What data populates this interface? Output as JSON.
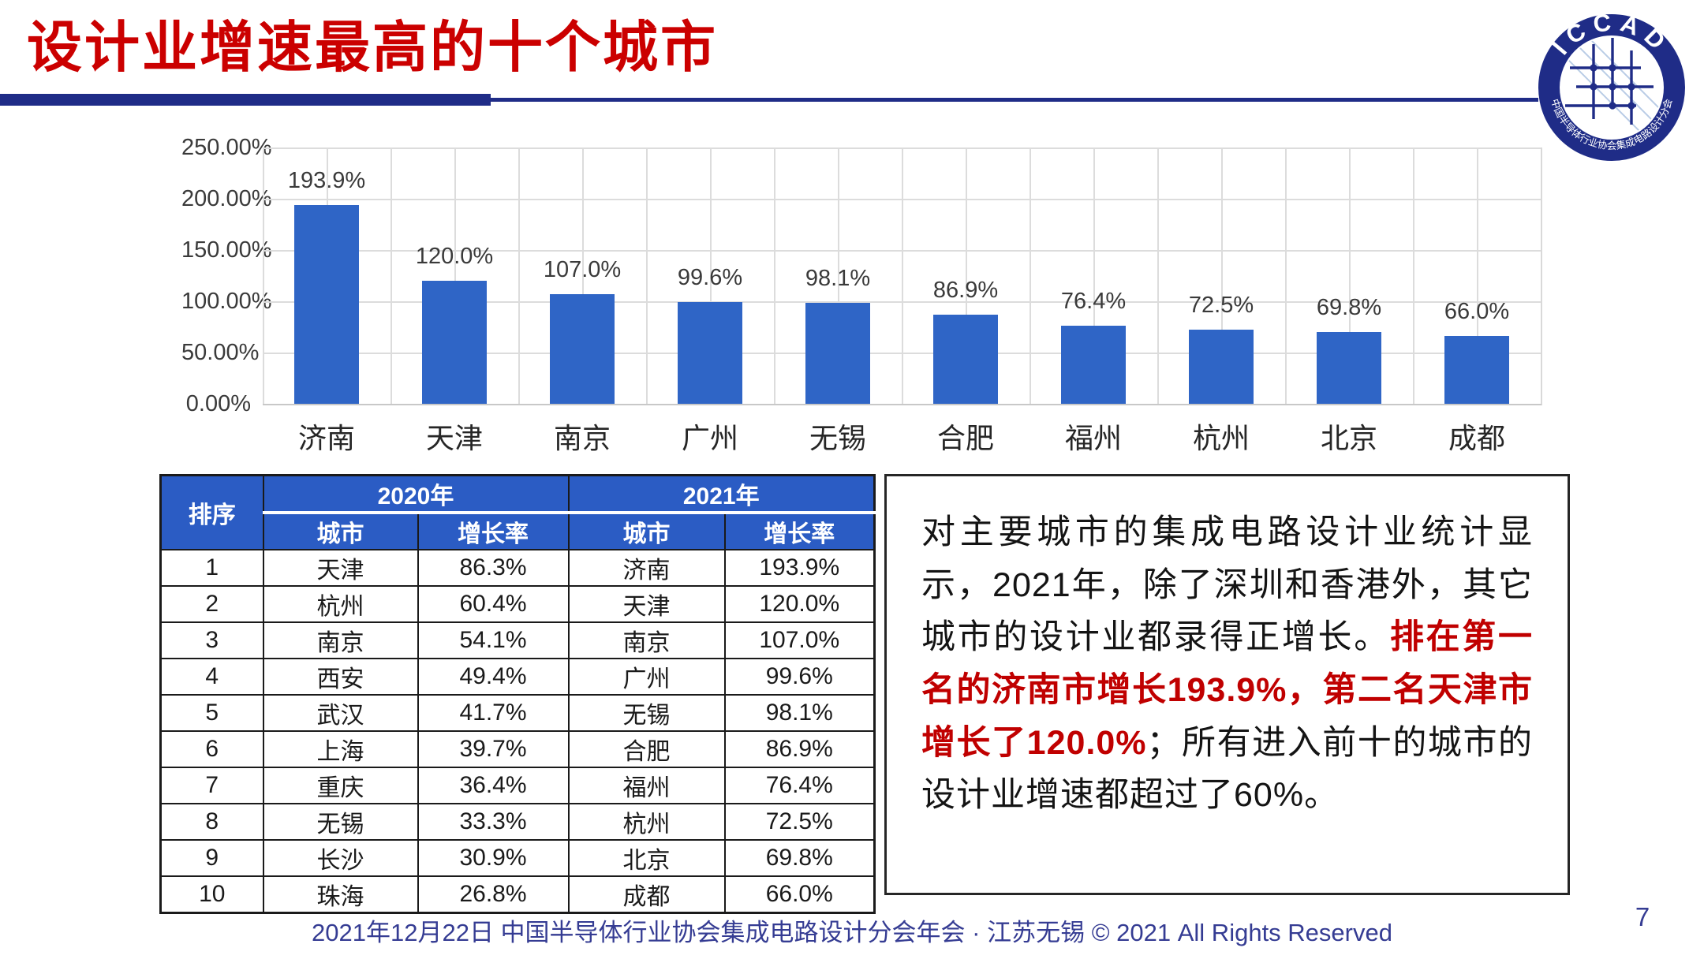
{
  "slide": {
    "title": "设计业增速最高的十个城市",
    "page_number": "7",
    "footer_text": "2021年12月22日 中国半导体行业协会集成电路设计分会年会 · 江苏无锡 © 2021 All Rights Reserved"
  },
  "logo": {
    "arc_top": "ICCAD",
    "arc_bottom": "中国半导体行业协会集成电路设计分会"
  },
  "chart_data": {
    "type": "bar",
    "title": "",
    "xlabel": "",
    "ylabel": "",
    "categories": [
      "济南",
      "天津",
      "南京",
      "广州",
      "无锡",
      "合肥",
      "福州",
      "杭州",
      "北京",
      "成都"
    ],
    "values": [
      193.9,
      120.0,
      107.0,
      99.6,
      98.1,
      86.9,
      76.4,
      72.5,
      69.8,
      66.0
    ],
    "value_labels": [
      "193.9%",
      "120.0%",
      "107.0%",
      "99.6%",
      "98.1%",
      "86.9%",
      "76.4%",
      "72.5%",
      "69.8%",
      "66.0%"
    ],
    "ylim": [
      0,
      250
    ],
    "ytick_labels": [
      "250.00%",
      "200.00%",
      "150.00%",
      "100.00%",
      "50.00%",
      "0.00%"
    ],
    "grid": true,
    "legend_position": "none",
    "bar_color": "#2F65C6"
  },
  "table": {
    "rank_header": "排序",
    "group_headers": [
      "2020年",
      "2021年"
    ],
    "sub_headers": [
      "城市",
      "增长率",
      "城市",
      "增长率"
    ],
    "rows": [
      [
        "1",
        "天津",
        "86.3%",
        "济南",
        "193.9%"
      ],
      [
        "2",
        "杭州",
        "60.4%",
        "天津",
        "120.0%"
      ],
      [
        "3",
        "南京",
        "54.1%",
        "南京",
        "107.0%"
      ],
      [
        "4",
        "西安",
        "49.4%",
        "广州",
        "99.6%"
      ],
      [
        "5",
        "武汉",
        "41.7%",
        "无锡",
        "98.1%"
      ],
      [
        "6",
        "上海",
        "39.7%",
        "合肥",
        "86.9%"
      ],
      [
        "7",
        "重庆",
        "36.4%",
        "福州",
        "76.4%"
      ],
      [
        "8",
        "无锡",
        "33.3%",
        "杭州",
        "72.5%"
      ],
      [
        "9",
        "长沙",
        "30.9%",
        "北京",
        "69.8%"
      ],
      [
        "10",
        "珠海",
        "26.8%",
        "成都",
        "66.0%"
      ]
    ]
  },
  "note": {
    "part1": "对主要城市的集成电路设计业统计显示，2021年，除了深圳和香港外，其它城市的设计业都录得正增长。",
    "part2_red": "排在第一名的济南市增长193.9%，第二名天津市增长了120.0%",
    "part3": "；所有进入前十的城市的设计业增速都超过了60%。"
  },
  "colors": {
    "title_red": "#CB0000",
    "accent_navy": "#1F2C87",
    "bar_blue": "#2F65C6",
    "table_header_blue": "#2B5CC4",
    "note_red": "#C00000",
    "footer_navy": "#353C93"
  }
}
